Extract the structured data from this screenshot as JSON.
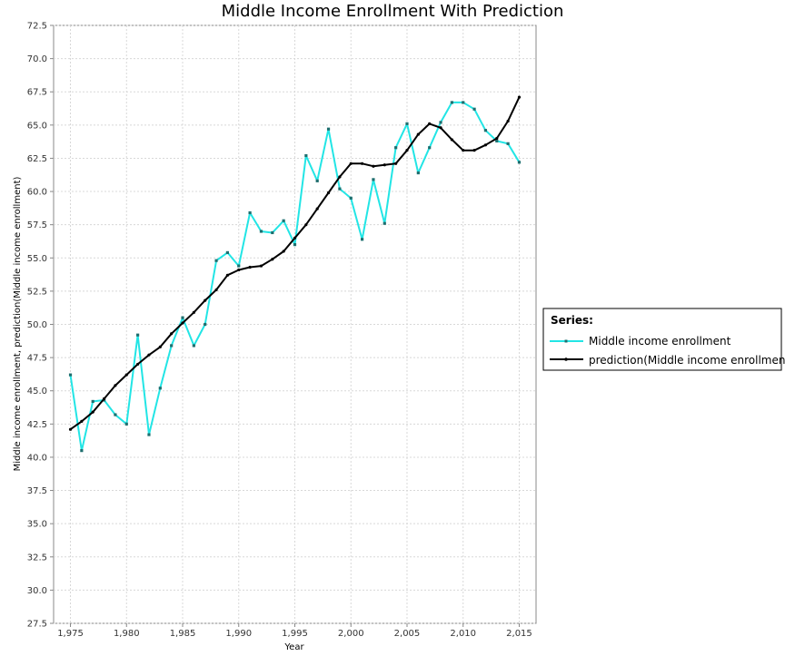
{
  "chart_data": {
    "type": "line",
    "title": "Middle Income Enrollment With Prediction",
    "xlabel": "Year",
    "ylabel": "Middle income enrollment, prediction(Middle income enrollment)",
    "xlim": [
      1973.5,
      2016.5
    ],
    "ylim": [
      27.5,
      72.5
    ],
    "x_ticks": [
      1975,
      1980,
      1985,
      1990,
      1995,
      2000,
      2005,
      2010,
      2015
    ],
    "x_tick_labels": [
      "1,975",
      "1,980",
      "1,985",
      "1,990",
      "1,995",
      "2,000",
      "2,005",
      "2,010",
      "2,015"
    ],
    "y_ticks": [
      27.5,
      30.0,
      32.5,
      35.0,
      37.5,
      40.0,
      42.5,
      45.0,
      47.5,
      50.0,
      52.5,
      55.0,
      57.5,
      60.0,
      62.5,
      65.0,
      67.5,
      70.0,
      72.5
    ],
    "y_tick_labels": [
      "27.5",
      "30.0",
      "32.5",
      "35.0",
      "37.5",
      "40.0",
      "42.5",
      "45.0",
      "47.5",
      "50.0",
      "52.5",
      "55.0",
      "57.5",
      "60.0",
      "62.5",
      "65.0",
      "67.5",
      "70.0",
      "72.5"
    ],
    "grid": true,
    "legend": {
      "title": "Series:",
      "position": "right"
    },
    "x": [
      1975,
      1976,
      1977,
      1978,
      1979,
      1980,
      1981,
      1982,
      1983,
      1984,
      1985,
      1986,
      1987,
      1988,
      1989,
      1990,
      1991,
      1992,
      1993,
      1994,
      1995,
      1996,
      1997,
      1998,
      1999,
      2000,
      2001,
      2002,
      2003,
      2004,
      2005,
      2006,
      2007,
      2008,
      2009,
      2010,
      2011,
      2012,
      2013,
      2014,
      2015
    ],
    "series": [
      {
        "name": "Middle income enrollment",
        "color": "#22e5e5",
        "marker": "square",
        "values": [
          46.2,
          40.5,
          44.2,
          44.3,
          43.2,
          42.5,
          49.2,
          41.7,
          45.2,
          48.4,
          50.5,
          48.4,
          50.0,
          54.8,
          55.4,
          54.4,
          58.4,
          57.0,
          56.9,
          57.8,
          56.0,
          62.7,
          60.8,
          64.7,
          60.2,
          59.5,
          56.4,
          60.9,
          57.6,
          63.3,
          65.1,
          61.4,
          63.3,
          65.2,
          66.7,
          66.7,
          66.2,
          64.6,
          63.8,
          63.6,
          62.2
        ]
      },
      {
        "name": "prediction(Middle income enrollment)",
        "color": "#000000",
        "marker": "dot",
        "values": [
          42.1,
          42.7,
          43.4,
          44.4,
          45.4,
          46.2,
          47.0,
          47.7,
          48.3,
          49.3,
          50.1,
          50.9,
          51.8,
          52.6,
          53.7,
          54.1,
          54.3,
          54.4,
          54.9,
          55.5,
          56.5,
          57.5,
          58.7,
          59.9,
          61.1,
          62.1,
          62.1,
          61.9,
          62.0,
          62.1,
          63.1,
          64.3,
          65.1,
          64.8,
          63.9,
          63.1,
          63.1,
          63.5,
          64.0,
          65.3,
          67.1
        ]
      }
    ]
  }
}
